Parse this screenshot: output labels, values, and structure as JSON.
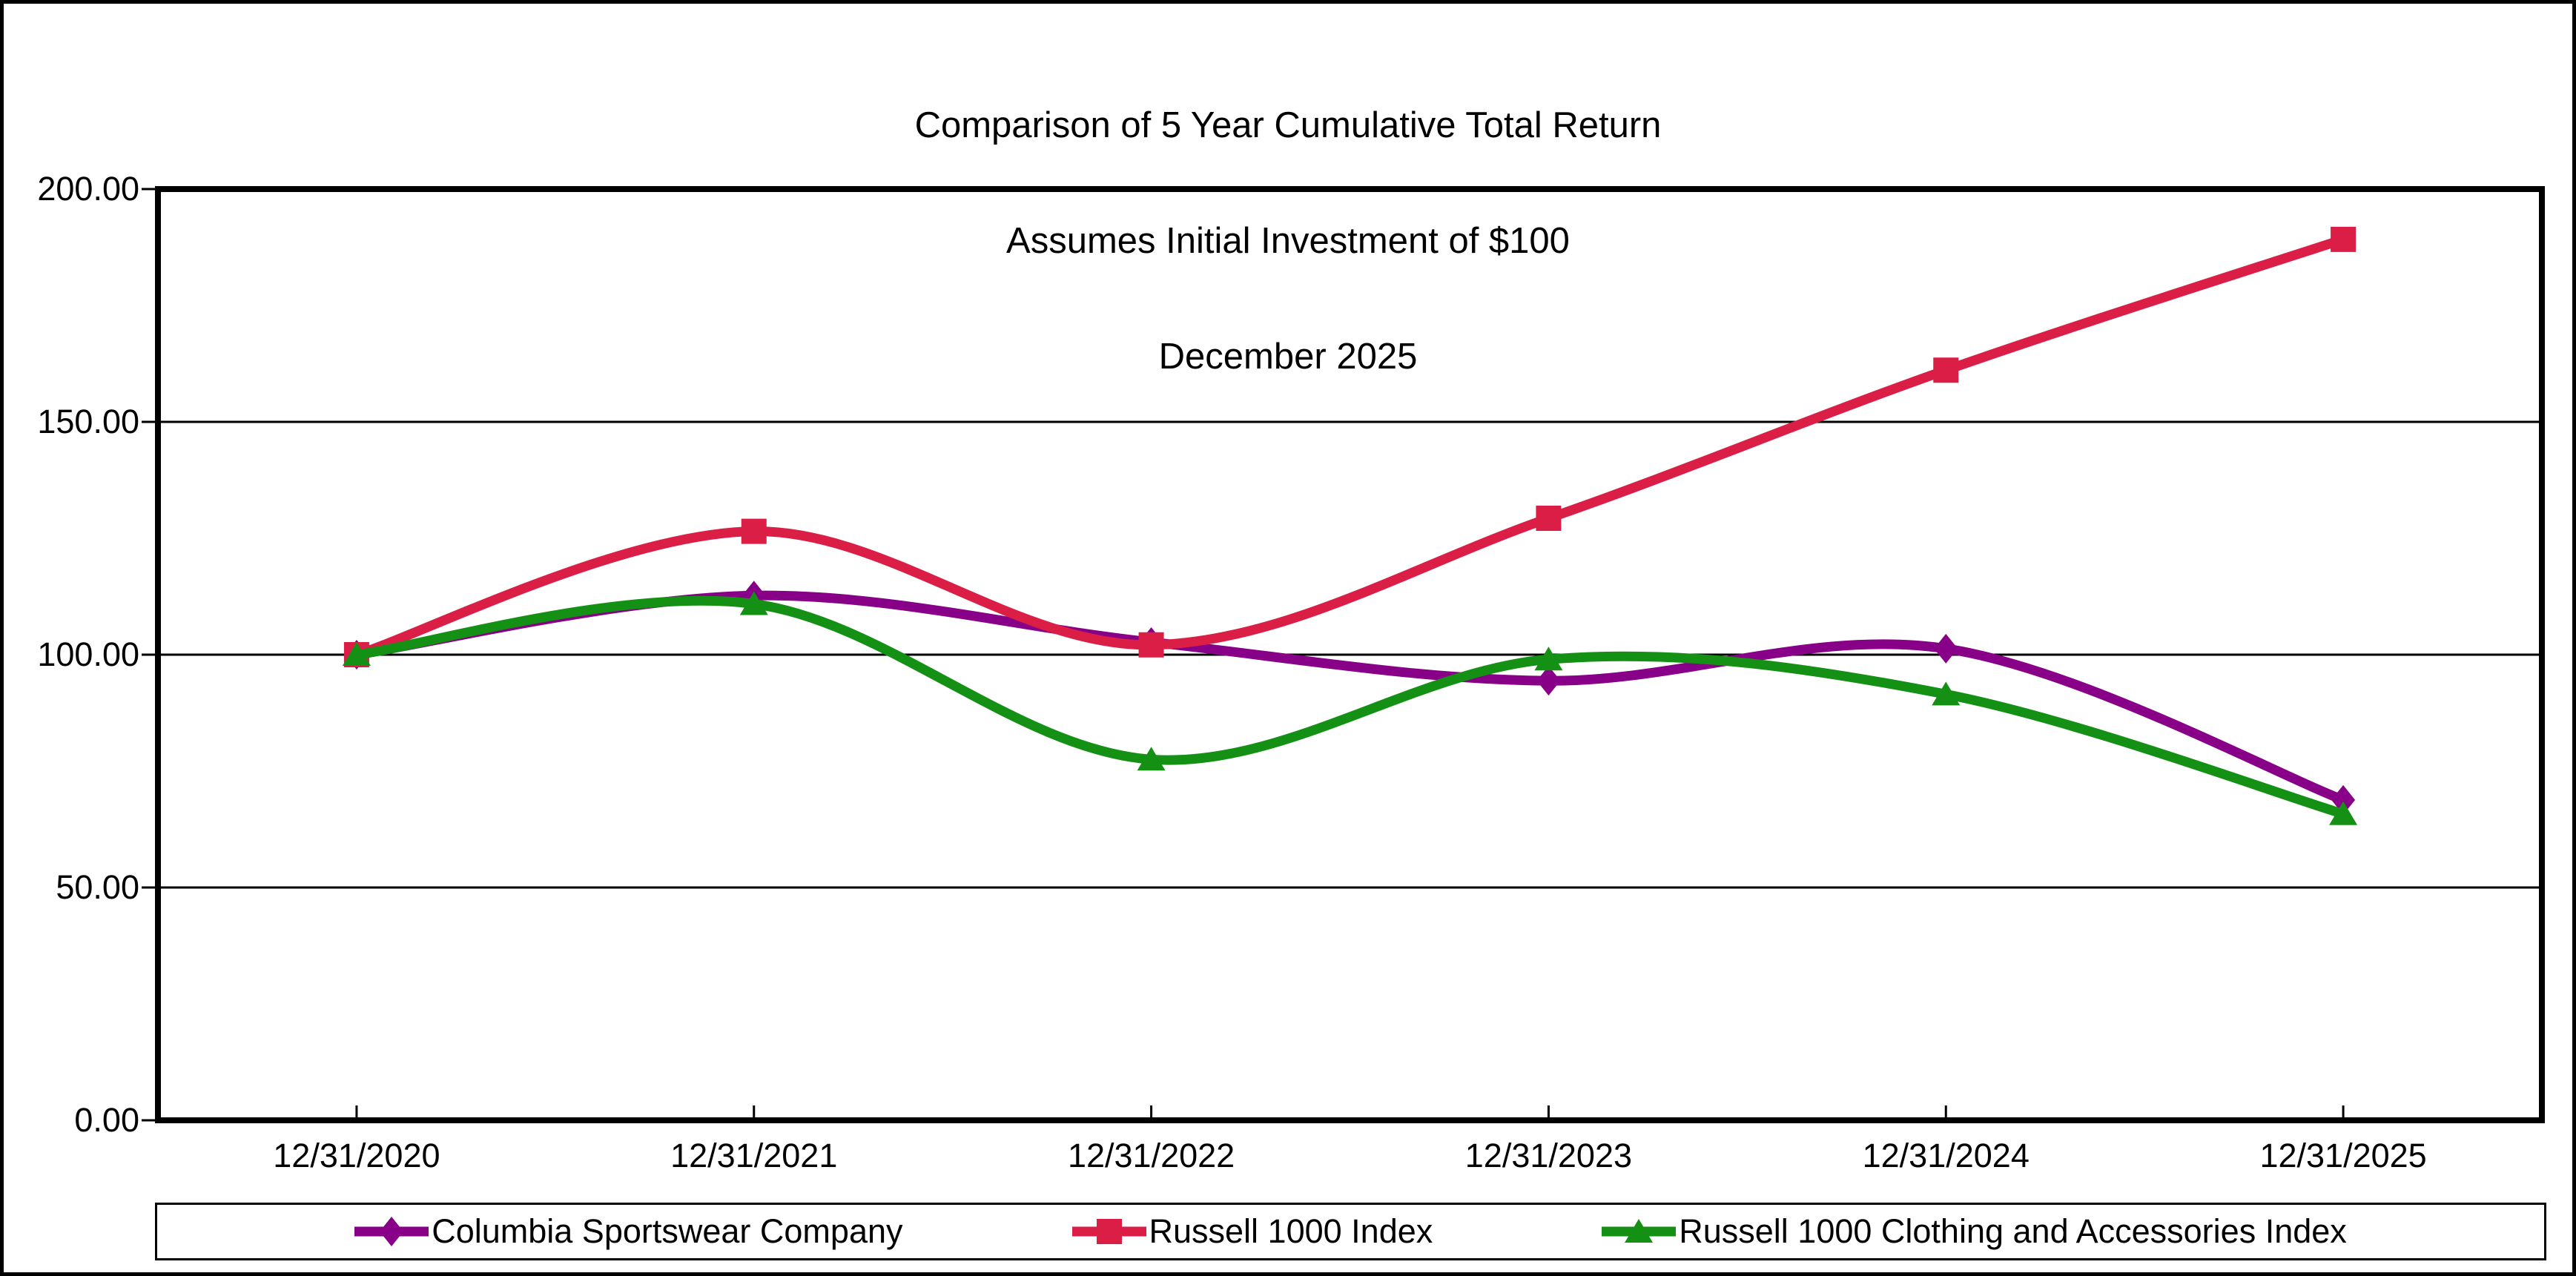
{
  "title": {
    "line1": "Comparison of 5 Year Cumulative Total Return",
    "line2": "Assumes Initial Investment of $100",
    "line3": "December 2025"
  },
  "chart_data": {
    "type": "line",
    "smoothed": true,
    "title": "Comparison of 5 Year Cumulative Total Return",
    "subtitle": "Assumes Initial Investment of $100",
    "date_label": "December 2025",
    "xlabel": "",
    "ylabel": "",
    "categories": [
      "12/31/2020",
      "12/31/2021",
      "12/31/2022",
      "12/31/2023",
      "12/31/2024",
      "12/31/2025"
    ],
    "series": [
      {
        "name": "Columbia Sportswear Company",
        "color": "#870087",
        "marker": "diamond",
        "values": [
          100.0,
          112.7,
          102.7,
          94.4,
          101.3,
          68.8
        ]
      },
      {
        "name": "Russell 1000 Index",
        "color": "#DB1E46",
        "marker": "square",
        "values": [
          100.0,
          126.5,
          102.1,
          129.3,
          161.1,
          189.2
        ]
      },
      {
        "name": "Russell 1000 Clothing and Accessories Index",
        "color": "#149114",
        "marker": "triangle",
        "values": [
          100.0,
          110.9,
          77.5,
          99.0,
          91.5,
          65.8
        ]
      }
    ],
    "ylim": [
      0,
      200
    ],
    "ytick_step": 50,
    "y_ticks": [
      {
        "label": "0.00",
        "value": 0
      },
      {
        "label": "50.00",
        "value": 50
      },
      {
        "label": "100.00",
        "value": 100
      },
      {
        "label": "150.00",
        "value": 150
      },
      {
        "label": "200.00",
        "value": 200
      }
    ],
    "grid": true,
    "legend_position": "bottom"
  },
  "colors": {
    "axis": "#000000",
    "gridline": "#000000",
    "background": "#ffffff",
    "text": "#000000"
  }
}
